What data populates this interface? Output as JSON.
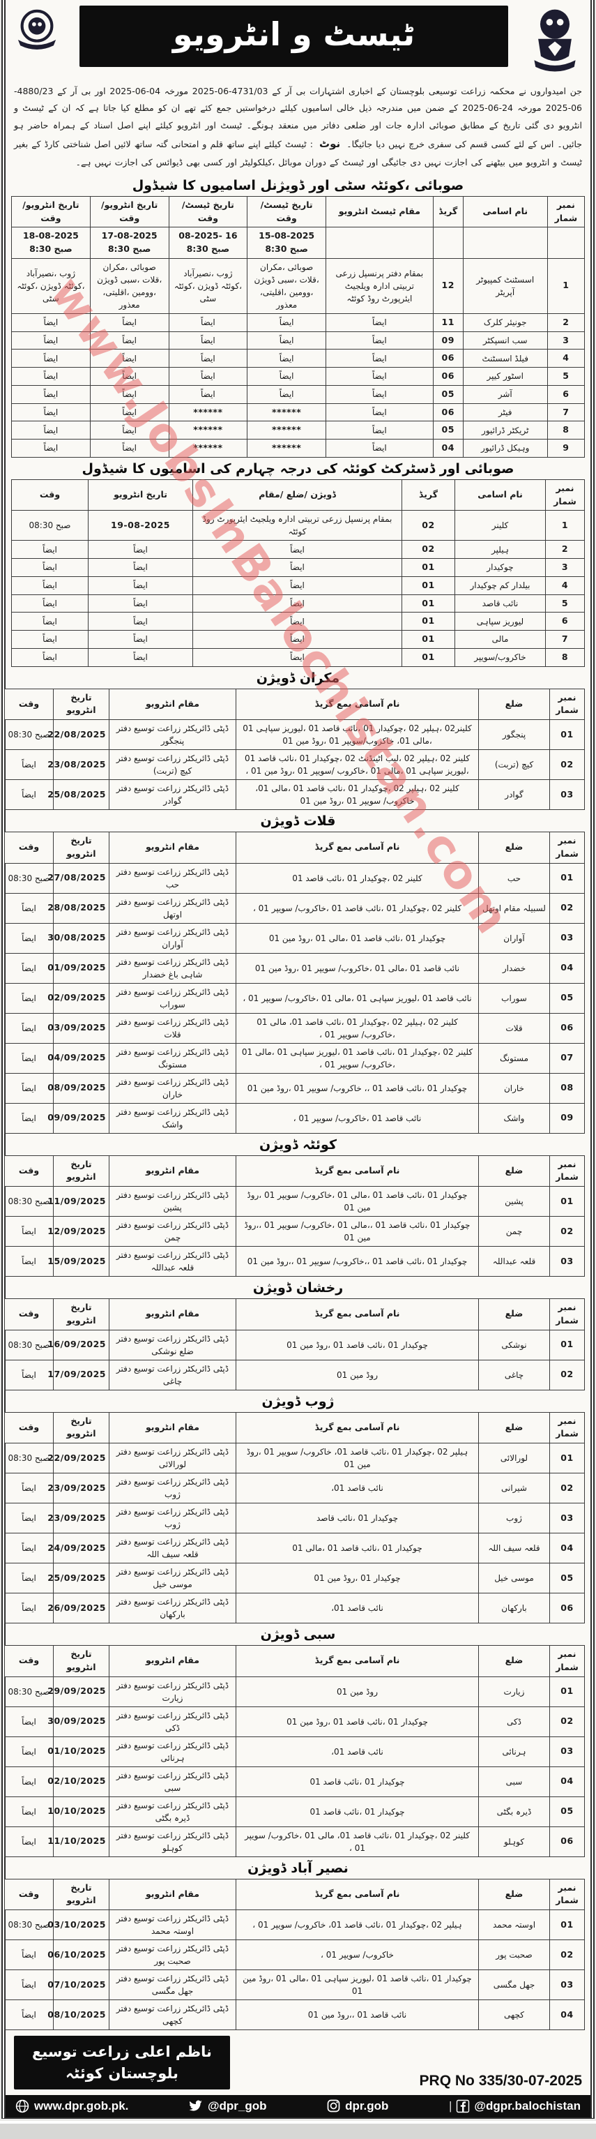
{
  "watermark": "www.JobsInBalochistan.com",
  "banner": {
    "title": "ٹیسٹ و انٹرویو"
  },
  "intro": {
    "text": "جن امیدواروں نے محکمہ زراعت توسیعی بلوچستان کے اخباری اشتہارات بی آر کے 4731/03-06-2025 مورخہ 04-06-2025 اور بی آر کے 4880/23-06-2025 مورخہ 24-06-2025 کے ضمن میں مندرجہ ذیل خالی اسامیوں کیلئے درخواستیں جمع کئے تھے ان کو مطلع کیا جاتا ہے کہ ان کے ٹیسٹ و انٹرویو دی گئی تاریخ کے مطابق صوبائی ادارہ جات اور ضلعی دفاتر میں منعقد ہونگے۔ ٹیسٹ اور انٹرویو کیلئے اپنے اصل اسناد کے ہمراہ حاضر ہو جائیں۔ اس کے لئے کسی قسم کی سفری خرچ نہیں دیا جائیگا۔",
    "note_label": "نوٹ",
    "note_text": ": ٹیسٹ کیلئے اپنے ساتھ قلم و امتحانی گتہ ساتھ لائیں اصل شناختی کارڈ کے بغیر ٹیسٹ و انٹرویو میں بیٹھنے کی اجازت نہیں دی جائیگی اور ٹیسٹ کے دوران موبائل ،کیلکولیٹر اور کسی بھی ڈیوائس کی اجازت نہیں ہے۔"
  },
  "table1": {
    "title": "صوبائی ،کوئٹہ سٹی اور ڈویژنل اسامیوں کا شیڈول",
    "headers": [
      "نمبر شمار",
      "نام اسامی",
      "گریڈ",
      "مقام ٹیسٹ انٹرویو",
      "تاریخ ٹیسٹ/وقت",
      "تاریخ ٹیسٹ/وقت",
      "تاریخ انٹرویو/وقت",
      "تاریخ انٹرویو/وقت"
    ],
    "rows": [
      {
        "no": "",
        "name": "",
        "grade": "",
        "venue": "",
        "d1": "15-08-2025\nصبح 8:30",
        "d2": "16 -08-2025\nصبح 8:30",
        "d3": "17-08-2025\nصبح 8:30",
        "d4": "18-08-2025\nصبح 8:30"
      },
      {
        "no": "1",
        "name": "اسسٹنٹ کمپیوٹر آپریٹر",
        "grade": "12",
        "venue": "بمقام دفتر پرنسپل زرعی تربیتی ادارہ ویلجیٹ ایئرپورٹ روڈ کوئٹہ",
        "d1": "صوبائی ،مکران ،قلات ،سبی ڈویژن ،وومین ،اقلیتی، معذور",
        "d2": "ژوب ،نصیرآباد ،کوئٹہ ڈویژن ،کوئٹہ سٹی",
        "d3": "صوبائی ،مکران ،قلات ،سبی ڈویژن ،وومین ،اقلیتی، معذور",
        "d4": "ژوب ،نصیرآباد ،کوئٹہ ڈویژن ،کوئٹہ سٹی"
      },
      {
        "no": "2",
        "name": "جونیئر کلرک",
        "grade": "11",
        "venue": "ایضاً",
        "d1": "ایضاً",
        "d2": "ایضاً",
        "d3": "ایضاً",
        "d4": "ایضاً"
      },
      {
        "no": "3",
        "name": "سب انسپکٹر",
        "grade": "09",
        "venue": "ایضاً",
        "d1": "ایضاً",
        "d2": "ایضاً",
        "d3": "ایضاً",
        "d4": "ایضاً"
      },
      {
        "no": "4",
        "name": "فیلڈ اسسٹنٹ",
        "grade": "06",
        "venue": "ایضاً",
        "d1": "ایضاً",
        "d2": "ایضاً",
        "d3": "ایضاً",
        "d4": "ایضاً"
      },
      {
        "no": "5",
        "name": "اسٹور کیپر",
        "grade": "06",
        "venue": "ایضاً",
        "d1": "ایضاً",
        "d2": "ایضاً",
        "d3": "ایضاً",
        "d4": "ایضاً"
      },
      {
        "no": "6",
        "name": "آشر",
        "grade": "05",
        "venue": "ایضاً",
        "d1": "ایضاً",
        "d2": "ایضاً",
        "d3": "ایضاً",
        "d4": "ایضاً"
      },
      {
        "no": "7",
        "name": "فیٹر",
        "grade": "06",
        "venue": "ایضاً",
        "d1": "******",
        "d2": "******",
        "d3": "ایضاً",
        "d4": "ایضاً"
      },
      {
        "no": "8",
        "name": "ٹریکٹر ڈرائیور",
        "grade": "05",
        "venue": "ایضاً",
        "d1": "******",
        "d2": "******",
        "d3": "ایضاً",
        "d4": "ایضاً"
      },
      {
        "no": "9",
        "name": "وہیکل ڈرائیور",
        "grade": "04",
        "venue": "ایضاً",
        "d1": "******",
        "d2": "******",
        "d3": "ایضاً",
        "d4": "ایضاً"
      }
    ]
  },
  "table2": {
    "title": "صوبائی اور ڈسٹرکٹ کوئٹہ کی درجہ چہارم کی اسامیوں کا شیڈول",
    "headers": [
      "نمبر شمار",
      "نام اسامی",
      "گریڈ",
      "ڈویژن /ضلع /مقام",
      "تاریخ انٹرویو",
      "وقت"
    ],
    "rows": [
      {
        "no": "1",
        "name": "کلینر",
        "grade": "02",
        "venue": "بمقام پرنسپل زرعی تربیتی ادارہ ویلجیٹ ایئرپورٹ روڈ کوئٹہ",
        "date": "19-08-2025",
        "time": "صبح 08:30"
      },
      {
        "no": "2",
        "name": "ہیلپر",
        "grade": "02",
        "venue": "ایضاً",
        "date": "ایضاً",
        "time": "ایضاً"
      },
      {
        "no": "3",
        "name": "چوکیدار",
        "grade": "01",
        "venue": "ایضاً",
        "date": "ایضاً",
        "time": "ایضاً"
      },
      {
        "no": "4",
        "name": "بیلدار کم چوکیدار",
        "grade": "01",
        "venue": "ایضاً",
        "date": "ایضاً",
        "time": "ایضاً"
      },
      {
        "no": "5",
        "name": "نائب قاصد",
        "grade": "01",
        "venue": "ایضاً",
        "date": "ایضاً",
        "time": "ایضاً"
      },
      {
        "no": "6",
        "name": "لیوریز سپاہی",
        "grade": "01",
        "venue": "ایضاً",
        "date": "ایضاً",
        "time": "ایضاً"
      },
      {
        "no": "7",
        "name": "مالی",
        "grade": "01",
        "venue": "ایضاً",
        "date": "ایضاً",
        "time": "ایضاً"
      },
      {
        "no": "8",
        "name": "خاکروب/سویپر",
        "grade": "01",
        "venue": "ایضاً",
        "date": "ایضاً",
        "time": "ایضاً"
      }
    ]
  },
  "division_headers": [
    "نمبر شمار",
    "ضلع",
    "نام آسامی بمع گریڈ",
    "مقام انٹرویو",
    "تاریخ انٹرویو",
    "وقت"
  ],
  "divisions": [
    {
      "title": "مکران ڈویژن",
      "rows": [
        {
          "no": "01",
          "district": "پنجگور",
          "posts": "کلینر02 ،ہیلپر 02 ،چوکیدار 01 ،نائب قاصد 01 ،لیوریز سپاہی 01 ،مالی 01، خاکروب/سویپر 01 ،روڈ مین 01",
          "venue": "ڈپٹی ڈائریکٹر زراعت توسیع دفتر پنجگور",
          "date": "22/08/2025",
          "time": "صبح 08:30"
        },
        {
          "no": "02",
          "district": "کیچ (تربت)",
          "posts": "کلینر 02 ،ہیلپر 02 ،لیب اٹینڈنٹ 02 ،چوکیدار 01 ،نائب قاصد 01 ،لیوریز سپاہی 01 ،مالی 01 ،خاکروب /سویپر 01 ،روڈ مین 01 ،",
          "venue": "ڈپٹی ڈائریکٹر زراعت توسیع دفتر کیچ (تربت)",
          "date": "23/08/2025",
          "time": "ایضاً"
        },
        {
          "no": "03",
          "district": "گوادر",
          "posts": "کلینر 02 ،ہیلپر 02 ،چوکیدار 01 ،نائب قاصد 01 ،مالی 01، خاکروب/ سویپر 01 ،روڈ مین 01",
          "venue": "ڈپٹی ڈائریکٹر زراعت توسیع دفتر گوادر",
          "date": "25/08/2025",
          "time": "ایضاً"
        }
      ]
    },
    {
      "title": "قلات ڈویژن",
      "rows": [
        {
          "no": "01",
          "district": "حب",
          "posts": "کلینر 02 ،چوکیدار 01 ،نائب قاصد 01",
          "venue": "ڈپٹی ڈائریکٹر زراعت توسیع دفتر حب",
          "date": "27/08/2025",
          "time": "صبح 08:30"
        },
        {
          "no": "02",
          "district": "لسبیلہ مقام اوتھل",
          "posts": "کلینر 02 ،چوکیدار 01 ،نائب قاصد 01 ،خاکروب/ سویپر 01 ،",
          "venue": "ڈپٹی ڈائریکٹر زراعت توسیع دفتر اوتھل",
          "date": "28/08/2025",
          "time": "ایضاً"
        },
        {
          "no": "03",
          "district": "آواران",
          "posts": "چوکیدار 01 ،نائب قاصد 01 ،مالی 01 ،روڈ مین 01",
          "venue": "ڈپٹی ڈائریکٹر زراعت توسیع دفتر آواران",
          "date": "30/08/2025",
          "time": "ایضاً"
        },
        {
          "no": "04",
          "district": "خضدار",
          "posts": "نائب قاصد 01 ،مالی 01 ،خاکروب/ سویپر 01 ،روڈ مین 01",
          "venue": "ڈپٹی ڈائریکٹر زراعت توسیع دفتر شاہی باغ خضدار",
          "date": "01/09/2025",
          "time": "ایضاً"
        },
        {
          "no": "05",
          "district": "سوراب",
          "posts": "نائب قاصد 01 ،لیوریز سپاہی 01 ،مالی 01 ،خاکروب/ سویپر 01 ،",
          "venue": "ڈپٹی ڈائریکٹر زراعت توسیع دفتر سوراب",
          "date": "02/09/2025",
          "time": "ایضاً"
        },
        {
          "no": "06",
          "district": "قلات",
          "posts": "کلینر 02 ،ہیلپر 02 ،چوکیدار 01 ،نائب قاصد 01، مالی 01 ،خاکروب/ سویپر 01 ،",
          "venue": "ڈپٹی ڈائریکٹر زراعت توسیع دفتر قلات",
          "date": "03/09/2025",
          "time": "ایضاً"
        },
        {
          "no": "07",
          "district": "مستونگ",
          "posts": "کلینر 02 ،چوکیدار 01 ،نائب قاصد 01 ،لیوریز سپاہی 01 ،مالی 01 ،خاکروب/ سویپر 01 ،",
          "venue": "ڈپٹی ڈائریکٹر زراعت توسیع دفتر مستونگ",
          "date": "04/09/2025",
          "time": "ایضاً"
        },
        {
          "no": "08",
          "district": "خاران",
          "posts": "چوکیدار 01 ،نائب قاصد 01 ،، خاکروب/ سویپر 01 ،روڈ مین 01",
          "venue": "ڈپٹی ڈائریکٹر زراعت توسیع دفتر خاران",
          "date": "08/09/2025",
          "time": "ایضاً"
        },
        {
          "no": "09",
          "district": "واشک",
          "posts": "نائب قاصد 01 ،خاکروب/ سویپر 01 ،",
          "venue": "ڈپٹی ڈائریکٹر زراعت توسیع دفتر واشک",
          "date": "09/09/2025",
          "time": "ایضاً"
        }
      ]
    },
    {
      "title": "کوئٹہ ڈویژن",
      "rows": [
        {
          "no": "01",
          "district": "پشین",
          "posts": "چوکیدار 01 ،نائب قاصد 01 ،مالی 01 ،خاکروب/ سویپر 01 ،روڈ مین 01",
          "venue": "ڈپٹی ڈائریکٹر زراعت توسیع دفتر پشین",
          "date": "11/09/2025",
          "time": "صبح 08:30"
        },
        {
          "no": "02",
          "district": "چمن",
          "posts": "چوکیدار 01 ،نائب قاصد 01 ،،مالی 01 ،خاکروب/ سویپر 01 ،،روڈ مین 01",
          "venue": "ڈپٹی ڈائریکٹر زراعت توسیع دفتر چمن",
          "date": "12/09/2025",
          "time": "ایضاً"
        },
        {
          "no": "03",
          "district": "قلعہ عبداللہ",
          "posts": "چوکیدار 01 ،نائب قاصد 01 ،،خاکروب/ سویپر 01 ،،روڈ مین 01",
          "venue": "ڈپٹی ڈائریکٹر زراعت توسیع دفتر قلعہ عبداللہ",
          "date": "15/09/2025",
          "time": "ایضاً"
        }
      ]
    },
    {
      "title": "رخشان ڈویژن",
      "rows": [
        {
          "no": "01",
          "district": "نوشکی",
          "posts": "چوکیدار 01 ،نائب قاصد 01 ،روڈ مین 01",
          "venue": "ڈپٹی ڈائریکٹر زراعت توسیع دفتر ضلع نوشکی",
          "date": "16/09/2025",
          "time": "صبح 08:30"
        },
        {
          "no": "02",
          "district": "چاغی",
          "posts": "روڈ مین 01",
          "venue": "ڈپٹی ڈائریکٹر زراعت توسیع دفتر چاغی",
          "date": "17/09/2025",
          "time": "ایضاً"
        }
      ]
    },
    {
      "title": "ژوب ڈویژن",
      "rows": [
        {
          "no": "01",
          "district": "لورالائی",
          "posts": "ہیلپر 02 ،چوکیدار 01 ،نائب قاصد 01، خاکروب/ سویپر 01 ،روڈ مین 01",
          "venue": "ڈپٹی ڈائریکٹر زراعت توسیع دفتر لورالائی",
          "date": "22/09/2025",
          "time": "صبح 08:30"
        },
        {
          "no": "02",
          "district": "شیرانی",
          "posts": "نائب قاصد 01،",
          "venue": "ڈپٹی ڈائریکٹر زراعت توسیع دفتر ژوب",
          "date": "23/09/2025",
          "time": "ایضاً"
        },
        {
          "no": "03",
          "district": "ژوب",
          "posts": "چوکیدار 01 ،نائب قاصد",
          "venue": "ڈپٹی ڈائریکٹر زراعت توسیع دفتر ژوب",
          "date": "23/09/2025",
          "time": "ایضاً"
        },
        {
          "no": "04",
          "district": "قلعہ سیف اللہ",
          "posts": "چوکیدار 01 ،نائب قاصد 01 ،مالی 01",
          "venue": "ڈپٹی ڈائریکٹر زراعت توسیع دفتر قلعہ سیف اللہ",
          "date": "24/09/2025",
          "time": "ایضاً"
        },
        {
          "no": "05",
          "district": "موسی خیل",
          "posts": "چوکیدار 01 ،روڈ مین 01",
          "venue": "ڈپٹی ڈائریکٹر زراعت توسیع دفتر موسی خیل",
          "date": "25/09/2025",
          "time": "ایضاً"
        },
        {
          "no": "06",
          "district": "بارکھان",
          "posts": "نائب قاصد 01،",
          "venue": "ڈپٹی ڈائریکٹر زراعت توسیع دفتر بارکھان",
          "date": "26/09/2025",
          "time": "ایضاً"
        }
      ]
    },
    {
      "title": "سبی ڈویژن",
      "rows": [
        {
          "no": "01",
          "district": "زیارت",
          "posts": "روڈ مین 01",
          "venue": "ڈپٹی ڈائریکٹر زراعت توسیع دفتر زیارت",
          "date": "29/09/2025",
          "time": "صبح 08:30"
        },
        {
          "no": "02",
          "district": "ڈکی",
          "posts": "چوکیدار 01 ،نائب قاصد 01 ،روڈ مین 01",
          "venue": "ڈپٹی ڈائریکٹر زراعت توسیع دفتر ڈکی",
          "date": "30/09/2025",
          "time": "ایضاً"
        },
        {
          "no": "03",
          "district": "ہرنائی",
          "posts": "نائب قاصد 01،",
          "venue": "ڈپٹی ڈائریکٹر زراعت توسیع دفتر ہرنائی",
          "date": "01/10/2025",
          "time": "ایضاً"
        },
        {
          "no": "04",
          "district": "سبی",
          "posts": "چوکیدار 01 ،نائب قاصد 01",
          "venue": "ڈپٹی ڈائریکٹر زراعت توسیع دفتر سبی",
          "date": "02/10/2025",
          "time": "ایضاً"
        },
        {
          "no": "05",
          "district": "ڈیرہ بگٹی",
          "posts": "چوکیدار 01 ،نائب قاصد 01",
          "venue": "ڈپٹی ڈائریکٹر زراعت توسیع دفتر ڈیرہ بگٹی",
          "date": "10/10/2025",
          "time": "ایضاً"
        },
        {
          "no": "06",
          "district": "کوہلو",
          "posts": "کلینر 02 ،چوکیدار 01 ،نائب قاصد 01، مالی 01 ،خاکروب/ سویپر 01 ،",
          "venue": "ڈپٹی ڈائریکٹر زراعت توسیع دفتر کوہلو",
          "date": "11/10/2025",
          "time": "ایضاً"
        }
      ]
    },
    {
      "title": "نصیر آباد ڈویژن",
      "rows": [
        {
          "no": "01",
          "district": "اوستہ محمد",
          "posts": "ہیلپر 02 ،چوکیدار 01 ،نائب قاصد 01، خاکروب/ سویپر 01 ،",
          "venue": "ڈپٹی ڈائریکٹر زراعت توسیع دفتر اوستہ محمد",
          "date": "03/10/2025",
          "time": "صبح 08:30"
        },
        {
          "no": "02",
          "district": "صحبت پور",
          "posts": "خاکروب/ سویپر 01 ،",
          "venue": "ڈپٹی ڈائریکٹر زراعت توسیع دفتر صحبت پور",
          "date": "06/10/2025",
          "time": "ایضاً"
        },
        {
          "no": "03",
          "district": "جھل مگسی",
          "posts": "چوکیدار 01 ،نائب قاصد 01 ،لیوریز سپاہی 01 ،مالی 01 ،روڈ مین 01",
          "venue": "ڈپٹی ڈائریکٹر زراعت توسیع دفتر جھل مگسی",
          "date": "07/10/2025",
          "time": "ایضاً"
        },
        {
          "no": "04",
          "district": "کچھی",
          "posts": "نائب قاصد 01 ،،روڈ مین 01",
          "venue": "ڈپٹی ڈائریکٹر زراعت توسیع دفتر کچھی",
          "date": "08/10/2025",
          "time": "ایضاً"
        }
      ]
    }
  ],
  "footer": {
    "signature_line1": "ناظم اعلی زراعت توسیع",
    "signature_line2": "بلوچستان کوئٹہ",
    "prq": "PRQ No 335/30-07-2025",
    "bar": {
      "website": "www.dpr.gob.pk.",
      "twitter": "@dpr_gob",
      "instagram": "dpr.gob",
      "separator": "|",
      "facebook": "@dgpr.balochistan",
      "icons": [
        "globe-icon",
        "twitter-icon",
        "instagram-icon",
        "facebook-icon"
      ]
    }
  }
}
